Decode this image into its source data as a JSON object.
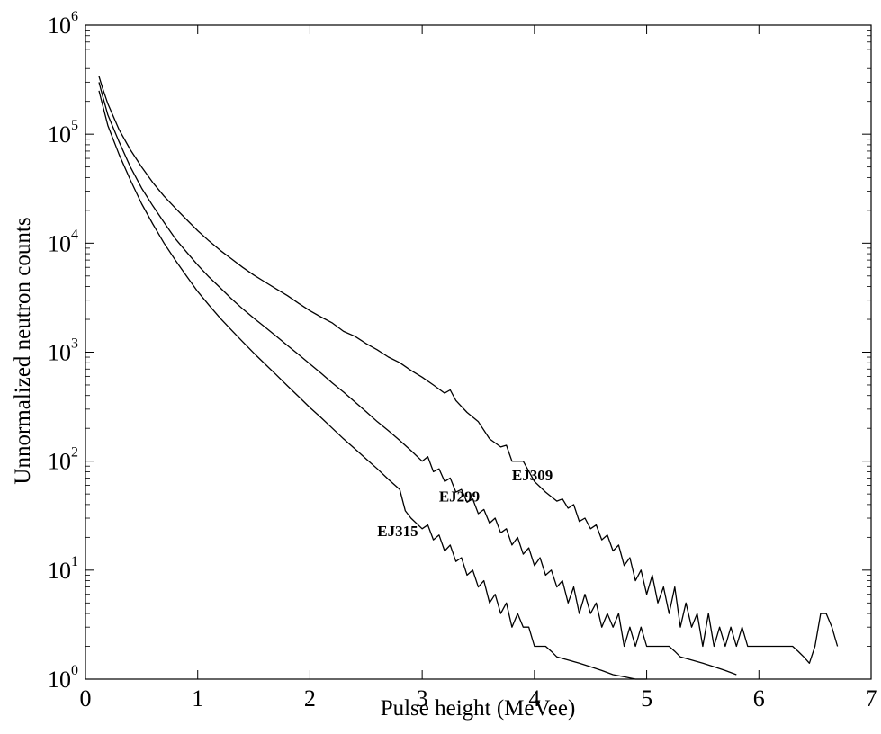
{
  "chart_data": {
    "type": "line",
    "title": "",
    "xlabel": "Pulse height (MeVee)",
    "ylabel": "Unnormalized neutron counts",
    "xlim": [
      0,
      7
    ],
    "ylim": [
      1,
      1000000
    ],
    "yscale": "log",
    "grid": false,
    "x_ticks": [
      "0",
      "1",
      "2",
      "3",
      "4",
      "5",
      "6",
      "7"
    ],
    "y_ticks": [
      {
        "base": "10",
        "exp": "0"
      },
      {
        "base": "10",
        "exp": "1"
      },
      {
        "base": "10",
        "exp": "2"
      },
      {
        "base": "10",
        "exp": "3"
      },
      {
        "base": "10",
        "exp": "4"
      },
      {
        "base": "10",
        "exp": "5"
      },
      {
        "base": "10",
        "exp": "6"
      }
    ],
    "series": [
      {
        "name": "EJ309",
        "label_at": [
          3.8,
          75
        ],
        "points": [
          [
            0.12,
            340000
          ],
          [
            0.15,
            270000
          ],
          [
            0.2,
            190000
          ],
          [
            0.3,
            110000
          ],
          [
            0.4,
            72000
          ],
          [
            0.5,
            50000
          ],
          [
            0.6,
            36000
          ],
          [
            0.7,
            27000
          ],
          [
            0.8,
            21000
          ],
          [
            0.9,
            16500
          ],
          [
            1.0,
            13000
          ],
          [
            1.1,
            10500
          ],
          [
            1.2,
            8600
          ],
          [
            1.3,
            7200
          ],
          [
            1.4,
            6000
          ],
          [
            1.5,
            5100
          ],
          [
            1.6,
            4400
          ],
          [
            1.7,
            3800
          ],
          [
            1.8,
            3300
          ],
          [
            1.9,
            2800
          ],
          [
            2.0,
            2400
          ],
          [
            2.1,
            2100
          ],
          [
            2.2,
            1850
          ],
          [
            2.3,
            1550
          ],
          [
            2.4,
            1400
          ],
          [
            2.5,
            1200
          ],
          [
            2.6,
            1050
          ],
          [
            2.7,
            900
          ],
          [
            2.8,
            800
          ],
          [
            2.9,
            680
          ],
          [
            3.0,
            590
          ],
          [
            3.1,
            500
          ],
          [
            3.2,
            420
          ],
          [
            3.25,
            450
          ],
          [
            3.3,
            360
          ],
          [
            3.4,
            280
          ],
          [
            3.5,
            230
          ],
          [
            3.6,
            160
          ],
          [
            3.7,
            135
          ],
          [
            3.75,
            140
          ],
          [
            3.8,
            100
          ],
          [
            3.9,
            100
          ],
          [
            4.0,
            65
          ],
          [
            4.1,
            52
          ],
          [
            4.2,
            43
          ],
          [
            4.25,
            45
          ],
          [
            4.3,
            37
          ],
          [
            4.35,
            40
          ],
          [
            4.4,
            28
          ],
          [
            4.45,
            30
          ],
          [
            4.5,
            24
          ],
          [
            4.55,
            26
          ],
          [
            4.6,
            19
          ],
          [
            4.65,
            21
          ],
          [
            4.7,
            15
          ],
          [
            4.75,
            17
          ],
          [
            4.8,
            11
          ],
          [
            4.85,
            13
          ],
          [
            4.9,
            8
          ],
          [
            4.95,
            10
          ],
          [
            5.0,
            6
          ],
          [
            5.05,
            9
          ],
          [
            5.1,
            5
          ],
          [
            5.15,
            7
          ],
          [
            5.2,
            4
          ],
          [
            5.25,
            7
          ],
          [
            5.3,
            3
          ],
          [
            5.35,
            5
          ],
          [
            5.4,
            3
          ],
          [
            5.45,
            4
          ],
          [
            5.5,
            2
          ],
          [
            5.55,
            4
          ],
          [
            5.6,
            2
          ],
          [
            5.65,
            3
          ],
          [
            5.7,
            2
          ],
          [
            5.75,
            3
          ],
          [
            5.8,
            2
          ],
          [
            5.85,
            3
          ],
          [
            5.9,
            2
          ],
          [
            5.95,
            2
          ],
          [
            6.0,
            2
          ],
          [
            6.05,
            2
          ],
          [
            6.1,
            2
          ],
          [
            6.15,
            2
          ],
          [
            6.2,
            2
          ],
          [
            6.25,
            2
          ],
          [
            6.3,
            2
          ],
          [
            6.35,
            1.8
          ],
          [
            6.4,
            1.6
          ],
          [
            6.45,
            1.4
          ],
          [
            6.5,
            2
          ],
          [
            6.55,
            4
          ],
          [
            6.6,
            4
          ],
          [
            6.65,
            3
          ],
          [
            6.7,
            2
          ]
        ]
      },
      {
        "name": "EJ299",
        "label_at": [
          3.15,
          48
        ],
        "points": [
          [
            0.12,
            300000
          ],
          [
            0.15,
            230000
          ],
          [
            0.2,
            150000
          ],
          [
            0.3,
            85000
          ],
          [
            0.4,
            50000
          ],
          [
            0.5,
            32000
          ],
          [
            0.6,
            22000
          ],
          [
            0.7,
            15500
          ],
          [
            0.8,
            11000
          ],
          [
            0.9,
            8300
          ],
          [
            1.0,
            6300
          ],
          [
            1.1,
            4900
          ],
          [
            1.2,
            3900
          ],
          [
            1.3,
            3100
          ],
          [
            1.4,
            2500
          ],
          [
            1.5,
            2050
          ],
          [
            1.6,
            1700
          ],
          [
            1.7,
            1400
          ],
          [
            1.8,
            1150
          ],
          [
            1.9,
            950
          ],
          [
            2.0,
            780
          ],
          [
            2.1,
            640
          ],
          [
            2.2,
            520
          ],
          [
            2.3,
            430
          ],
          [
            2.4,
            350
          ],
          [
            2.5,
            285
          ],
          [
            2.6,
            230
          ],
          [
            2.7,
            190
          ],
          [
            2.8,
            155
          ],
          [
            2.9,
            125
          ],
          [
            3.0,
            100
          ],
          [
            3.05,
            110
          ],
          [
            3.1,
            80
          ],
          [
            3.15,
            85
          ],
          [
            3.2,
            65
          ],
          [
            3.25,
            70
          ],
          [
            3.3,
            52
          ],
          [
            3.35,
            55
          ],
          [
            3.4,
            42
          ],
          [
            3.45,
            45
          ],
          [
            3.5,
            33
          ],
          [
            3.55,
            36
          ],
          [
            3.6,
            27
          ],
          [
            3.65,
            30
          ],
          [
            3.7,
            22
          ],
          [
            3.75,
            24
          ],
          [
            3.8,
            17
          ],
          [
            3.85,
            20
          ],
          [
            3.9,
            14
          ],
          [
            3.95,
            16
          ],
          [
            4.0,
            11
          ],
          [
            4.05,
            13
          ],
          [
            4.1,
            9
          ],
          [
            4.15,
            10
          ],
          [
            4.2,
            7
          ],
          [
            4.25,
            8
          ],
          [
            4.3,
            5
          ],
          [
            4.35,
            7
          ],
          [
            4.4,
            4
          ],
          [
            4.45,
            6
          ],
          [
            4.5,
            4
          ],
          [
            4.55,
            5
          ],
          [
            4.6,
            3
          ],
          [
            4.65,
            4
          ],
          [
            4.7,
            3
          ],
          [
            4.75,
            4
          ],
          [
            4.8,
            2
          ],
          [
            4.85,
            3
          ],
          [
            4.9,
            2
          ],
          [
            4.95,
            3
          ],
          [
            5.0,
            2
          ],
          [
            5.05,
            2
          ],
          [
            5.1,
            2
          ],
          [
            5.15,
            2
          ],
          [
            5.2,
            2
          ],
          [
            5.25,
            1.8
          ],
          [
            5.3,
            1.6
          ],
          [
            5.4,
            1.5
          ],
          [
            5.5,
            1.4
          ],
          [
            5.6,
            1.3
          ],
          [
            5.7,
            1.2
          ],
          [
            5.8,
            1.1
          ]
        ]
      },
      {
        "name": "EJ315",
        "label_at": [
          2.6,
          23
        ],
        "points": [
          [
            0.12,
            250000
          ],
          [
            0.15,
            190000
          ],
          [
            0.2,
            120000
          ],
          [
            0.3,
            65000
          ],
          [
            0.4,
            38000
          ],
          [
            0.5,
            23000
          ],
          [
            0.6,
            15000
          ],
          [
            0.7,
            10000
          ],
          [
            0.8,
            7000
          ],
          [
            0.9,
            5000
          ],
          [
            1.0,
            3600
          ],
          [
            1.1,
            2700
          ],
          [
            1.2,
            2050
          ],
          [
            1.3,
            1600
          ],
          [
            1.4,
            1250
          ],
          [
            1.5,
            980
          ],
          [
            1.6,
            780
          ],
          [
            1.7,
            620
          ],
          [
            1.8,
            490
          ],
          [
            1.9,
            390
          ],
          [
            2.0,
            310
          ],
          [
            2.1,
            250
          ],
          [
            2.2,
            200
          ],
          [
            2.3,
            160
          ],
          [
            2.4,
            130
          ],
          [
            2.5,
            105
          ],
          [
            2.6,
            85
          ],
          [
            2.7,
            68
          ],
          [
            2.8,
            55
          ],
          [
            2.85,
            35
          ],
          [
            2.9,
            30
          ],
          [
            3.0,
            24
          ],
          [
            3.05,
            26
          ],
          [
            3.1,
            19
          ],
          [
            3.15,
            21
          ],
          [
            3.2,
            15
          ],
          [
            3.25,
            17
          ],
          [
            3.3,
            12
          ],
          [
            3.35,
            13
          ],
          [
            3.4,
            9
          ],
          [
            3.45,
            10
          ],
          [
            3.5,
            7
          ],
          [
            3.55,
            8
          ],
          [
            3.6,
            5
          ],
          [
            3.65,
            6
          ],
          [
            3.7,
            4
          ],
          [
            3.75,
            5
          ],
          [
            3.8,
            3
          ],
          [
            3.85,
            4
          ],
          [
            3.9,
            3
          ],
          [
            3.95,
            3
          ],
          [
            4.0,
            2
          ],
          [
            4.05,
            2
          ],
          [
            4.1,
            2
          ],
          [
            4.15,
            1.8
          ],
          [
            4.2,
            1.6
          ],
          [
            4.3,
            1.5
          ],
          [
            4.4,
            1.4
          ],
          [
            4.5,
            1.3
          ],
          [
            4.6,
            1.2
          ],
          [
            4.7,
            1.1
          ],
          [
            4.8,
            1.05
          ],
          [
            4.9,
            1.0
          ],
          [
            5.0,
            1.0
          ]
        ]
      }
    ]
  }
}
